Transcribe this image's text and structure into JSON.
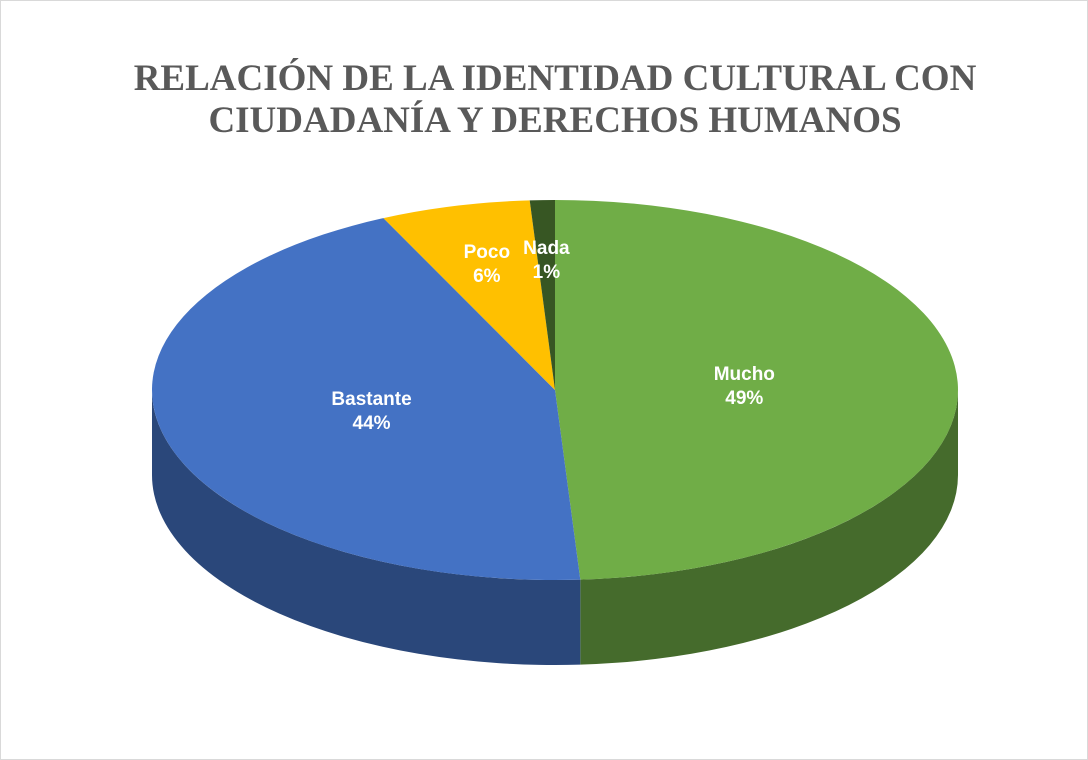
{
  "chart_data": {
    "type": "pie",
    "title": "RELACIÓN DE LA IDENTIDAD CULTURAL CON CIUDADANÍA Y DERECHOS HUMANOS",
    "categories": [
      "Mucho",
      "Bastante",
      "Poco",
      "Nada"
    ],
    "values": [
      49,
      44,
      6,
      1
    ],
    "value_labels": [
      "49%",
      "44%",
      "6%",
      "1%"
    ],
    "colors": [
      "#70ad47",
      "#4472c4",
      "#ffc000",
      "#375623"
    ]
  }
}
